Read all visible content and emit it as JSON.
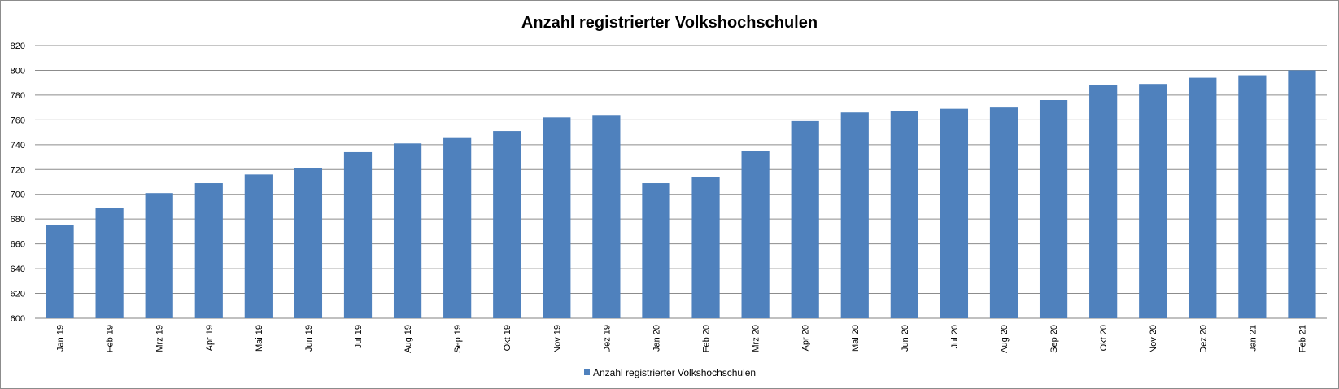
{
  "chart_data": {
    "type": "bar",
    "title": "Anzahl registrierter Volkshochschulen",
    "xlabel": "",
    "ylabel": "",
    "ylim": [
      600,
      820
    ],
    "yticks": [
      600,
      620,
      640,
      660,
      680,
      700,
      720,
      740,
      760,
      780,
      800,
      820
    ],
    "grid": true,
    "legend_position": "bottom",
    "categories": [
      "Jan 19",
      "Feb 19",
      "Mrz 19",
      "Apr 19",
      "Mai 19",
      "Jun 19",
      "Jul 19",
      "Aug 19",
      "Sep 19",
      "Okt 19",
      "Nov 19",
      "Dez 19",
      "Jan 20",
      "Feb 20",
      "Mrz 20",
      "Apr 20",
      "Mai 20",
      "Jun 20",
      "Jul 20",
      "Aug 20",
      "Sep 20",
      "Okt 20",
      "Nov 20",
      "Dez 20",
      "Jan 21",
      "Feb 21"
    ],
    "series": [
      {
        "name": "Anzahl registrierter Volkshochschulen",
        "color": "#4f81bd",
        "values": [
          675,
          689,
          701,
          709,
          716,
          721,
          734,
          741,
          746,
          751,
          762,
          764,
          709,
          714,
          735,
          759,
          766,
          767,
          769,
          770,
          776,
          788,
          789,
          794,
          796,
          800
        ]
      }
    ]
  }
}
